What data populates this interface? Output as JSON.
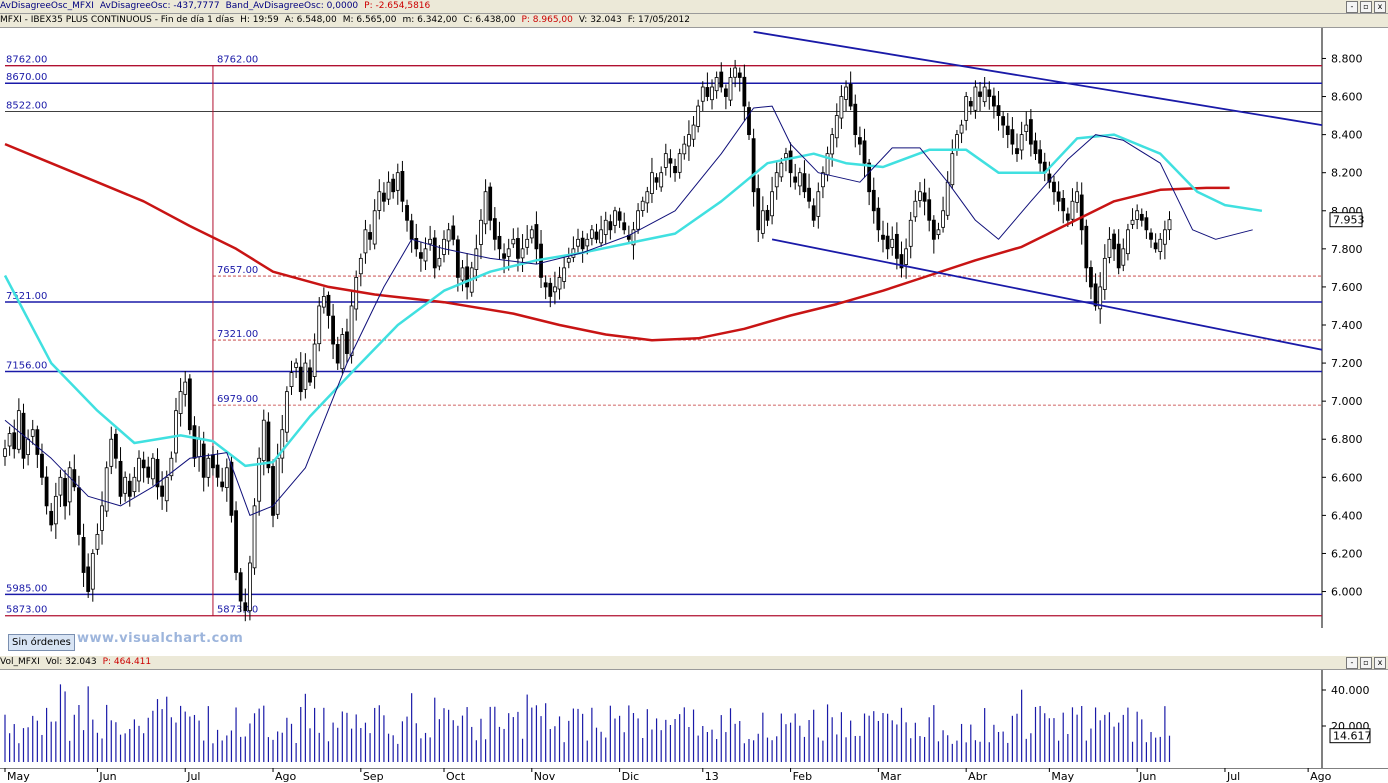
{
  "chart_header": {
    "line1": [
      "AvDisagreeOsc_MFXI",
      "AvDisagreeOsc: -437,7777",
      "Band_AvDisagreeOsc: 0,0000",
      "P: -2.654,5816"
    ],
    "line1_colors": [
      "#00007f",
      "#00007f",
      "#00007f",
      "#cc0000"
    ],
    "line2": [
      "MFXI - IBEX35 PLUS CONTINUOUS - Fin de día 1 días",
      "H: 19:59",
      "A: 6.548,00",
      "M: 6.565,00",
      "m: 6.342,00",
      "C: 6.438,00",
      "P: 8.965,00",
      "V: 32.043",
      "F: 17/05/2012"
    ],
    "line2_colors": [
      "#000000",
      "#000000",
      "#000000",
      "#000000",
      "#000000",
      "#000000",
      "#cc0000",
      "#000000",
      "#000000"
    ]
  },
  "volume_header": [
    "Vol_MFXI",
    "Vol: 32.043",
    "P: 464.411"
  ],
  "volume_header_colors": [
    "#000000",
    "#000000",
    "#cc0000"
  ],
  "badge": "Sin órdenes",
  "watermark": "www.visualchart.com",
  "last_price_label": "7.953",
  "last_volume_label": "14.617",
  "window_buttons": [
    "-",
    "▫",
    "x"
  ],
  "colors": {
    "ma_long": "#c81414",
    "ma_mid": "#40e0e0",
    "ma_short": "#10107a",
    "trendline": "#1a1aa8",
    "hline_blue": "#1a1aa8",
    "hline_red": "#b01030",
    "dashed_red": "#c03030",
    "volume_bars": "#1a1aa8",
    "candles": "#000000"
  },
  "chart_data": [
    {
      "type": "candlestick",
      "title": "MFXI - IBEX35 PLUS CONTINUOUS",
      "ylim": [
        5840,
        8960
      ],
      "yticks": [
        6000,
        6200,
        6400,
        6600,
        6800,
        7000,
        7200,
        7400,
        7600,
        7800,
        8000,
        8200,
        8400,
        8600,
        8800
      ],
      "ytick_labels": [
        "6.000",
        "6.200",
        "6.400",
        "6.600",
        "6.800",
        "7.000",
        "7.200",
        "7.400",
        "7.600",
        "7.800",
        "8.000",
        "8.200",
        "8.400",
        "8.600",
        "8.800"
      ],
      "x_labels": [
        "May",
        "Jun",
        "Jul",
        "Ago",
        "Sep",
        "Oct",
        "Nov",
        "Dic",
        "13",
        "Feb",
        "Mar",
        "Abr",
        "May",
        "Jun",
        "Jul",
        "Ago"
      ],
      "x_label_pos": [
        0,
        20,
        39,
        58,
        77,
        95,
        114,
        133,
        151,
        170,
        189,
        208,
        226,
        245,
        264,
        282
      ],
      "x_range": [
        0,
        285
      ],
      "closes": [
        6750,
        6830,
        6750,
        6950,
        6700,
        6800,
        6850,
        6720,
        6600,
        6450,
        6350,
        6500,
        6600,
        6450,
        6650,
        6550,
        6300,
        6100,
        6000,
        6200,
        6300,
        6450,
        6650,
        6800,
        6700,
        6500,
        6600,
        6500,
        6600,
        6700,
        6650,
        6600,
        6700,
        6550,
        6500,
        6600,
        6700,
        6950,
        7050,
        7100,
        6850,
        6700,
        6800,
        6600,
        6700,
        6650,
        6600,
        6550,
        6650,
        6400,
        6100,
        5950,
        5900,
        6150,
        6450,
        6700,
        6900,
        6650,
        6400,
        6700,
        6850,
        7050,
        7150,
        7200,
        7050,
        7200,
        7100,
        7300,
        7500,
        7550,
        7450,
        7300,
        7200,
        7350,
        7250,
        7500,
        7650,
        7750,
        7900,
        7850,
        8000,
        8100,
        8050,
        8150,
        8100,
        8200,
        8050,
        7950,
        7850,
        7800,
        7750,
        7800,
        7850,
        7700,
        7750,
        7850,
        7900,
        7850,
        7650,
        7700,
        7600,
        7700,
        7800,
        7950,
        8100,
        7950,
        7850,
        7800,
        7750,
        7800,
        7850,
        7750,
        7800,
        7850,
        7900,
        7800,
        7650,
        7600,
        7550,
        7600,
        7650,
        7700,
        7750,
        7800,
        7850,
        7800,
        7850,
        7900,
        7850,
        7900,
        7950,
        7900,
        8000,
        7950,
        7900,
        7850,
        7900,
        8000,
        8050,
        8100,
        8200,
        8150,
        8200,
        8300,
        8250,
        8200,
        8300,
        8350,
        8400,
        8450,
        8550,
        8650,
        8600,
        8650,
        8700,
        8650,
        8600,
        8700,
        8750,
        8700,
        8550,
        8400,
        8100,
        7900,
        8000,
        7950,
        8100,
        8200,
        8250,
        8300,
        8200,
        8150,
        8200,
        8100,
        8050,
        7950,
        8100,
        8200,
        8300,
        8400,
        8500,
        8600,
        8650,
        8550,
        8400,
        8350,
        8250,
        8100,
        8000,
        7900,
        7850,
        7800,
        7850,
        7750,
        7700,
        7800,
        7950,
        8050,
        8100,
        8050,
        7950,
        7850,
        7900,
        8000,
        8150,
        8300,
        8400,
        8450,
        8600,
        8550,
        8650,
        8600,
        8650,
        8600,
        8550,
        8500,
        8450,
        8400,
        8350,
        8300,
        8400,
        8450,
        8350,
        8300,
        8250,
        8200,
        8150,
        8100,
        8050,
        8000,
        7950,
        8050,
        8100,
        7900,
        7700,
        7600,
        7500,
        7600,
        7750,
        7850,
        7800,
        7700,
        7800,
        7900,
        7950,
        8000,
        7950,
        7900,
        7850,
        7800,
        7850,
        7900,
        7953
      ],
      "ma_long": [
        [
          0,
          8350
        ],
        [
          10,
          8250
        ],
        [
          20,
          8150
        ],
        [
          30,
          8050
        ],
        [
          40,
          7920
        ],
        [
          50,
          7800
        ],
        [
          58,
          7680
        ],
        [
          70,
          7600
        ],
        [
          80,
          7560
        ],
        [
          95,
          7520
        ],
        [
          110,
          7460
        ],
        [
          120,
          7400
        ],
        [
          130,
          7350
        ],
        [
          140,
          7320
        ],
        [
          150,
          7330
        ],
        [
          160,
          7380
        ],
        [
          170,
          7450
        ],
        [
          180,
          7510
        ],
        [
          190,
          7580
        ],
        [
          200,
          7660
        ],
        [
          210,
          7740
        ],
        [
          220,
          7810
        ],
        [
          230,
          7930
        ],
        [
          240,
          8050
        ],
        [
          250,
          8110
        ],
        [
          260,
          8120
        ],
        [
          265,
          8120
        ]
      ],
      "ma_mid": [
        [
          0,
          7660
        ],
        [
          10,
          7200
        ],
        [
          20,
          6950
        ],
        [
          28,
          6780
        ],
        [
          38,
          6820
        ],
        [
          45,
          6790
        ],
        [
          52,
          6660
        ],
        [
          58,
          6680
        ],
        [
          66,
          6920
        ],
        [
          75,
          7150
        ],
        [
          85,
          7400
        ],
        [
          95,
          7580
        ],
        [
          105,
          7680
        ],
        [
          115,
          7740
        ],
        [
          125,
          7780
        ],
        [
          135,
          7830
        ],
        [
          145,
          7880
        ],
        [
          155,
          8050
        ],
        [
          165,
          8250
        ],
        [
          175,
          8300
        ],
        [
          182,
          8250
        ],
        [
          190,
          8230
        ],
        [
          200,
          8320
        ],
        [
          208,
          8320
        ],
        [
          215,
          8200
        ],
        [
          225,
          8200
        ],
        [
          232,
          8380
        ],
        [
          240,
          8400
        ],
        [
          250,
          8300
        ],
        [
          258,
          8100
        ],
        [
          264,
          8030
        ],
        [
          272,
          8000
        ]
      ],
      "ma_short": [
        [
          0,
          6900
        ],
        [
          10,
          6700
        ],
        [
          18,
          6500
        ],
        [
          25,
          6450
        ],
        [
          32,
          6550
        ],
        [
          40,
          6700
        ],
        [
          48,
          6730
        ],
        [
          53,
          6400
        ],
        [
          58,
          6450
        ],
        [
          65,
          6650
        ],
        [
          74,
          7200
        ],
        [
          82,
          7600
        ],
        [
          88,
          7850
        ],
        [
          95,
          7800
        ],
        [
          105,
          7750
        ],
        [
          115,
          7720
        ],
        [
          125,
          7780
        ],
        [
          135,
          7870
        ],
        [
          145,
          8000
        ],
        [
          155,
          8300
        ],
        [
          162,
          8540
        ],
        [
          166,
          8550
        ],
        [
          170,
          8350
        ],
        [
          176,
          8200
        ],
        [
          185,
          8150
        ],
        [
          192,
          8330
        ],
        [
          198,
          8330
        ],
        [
          204,
          8150
        ],
        [
          210,
          7950
        ],
        [
          215,
          7850
        ],
        [
          222,
          8050
        ],
        [
          230,
          8270
        ],
        [
          236,
          8400
        ],
        [
          242,
          8370
        ],
        [
          250,
          8250
        ],
        [
          257,
          7900
        ],
        [
          262,
          7850
        ],
        [
          270,
          7900
        ]
      ],
      "trendlines": [
        [
          [
            162,
            8940
          ],
          [
            285,
            8450
          ]
        ],
        [
          [
            166,
            7850
          ],
          [
            285,
            7270
          ]
        ]
      ],
      "hlines_blue": [
        8670,
        7521,
        7156,
        5985
      ],
      "hlines_red": [
        8762,
        5873
      ],
      "hline_thin": [
        8522
      ],
      "dashed_red": [
        7657,
        7321,
        6979
      ],
      "vline": 45,
      "level_labels_left": [
        "8762.00",
        "8670.00",
        "8522.00",
        "7521.00",
        "7156.00",
        "5985.00",
        "5873.00"
      ],
      "level_labels_left_values": [
        8762,
        8670,
        8522,
        7521,
        7156,
        5985,
        5873
      ],
      "level_labels_mid": [
        "8762.00",
        "7657.00",
        "7321.00",
        "6979.00",
        "5873.00"
      ],
      "level_labels_mid_values": [
        8762,
        7657,
        7321,
        6979,
        5873
      ]
    },
    {
      "type": "bar",
      "title": "Vol_MFXI",
      "ylim": [
        0,
        50000
      ],
      "yticks": [
        20000,
        40000
      ],
      "ytick_labels": [
        "20.000",
        "40.000"
      ],
      "values_seed": 32043
    }
  ]
}
